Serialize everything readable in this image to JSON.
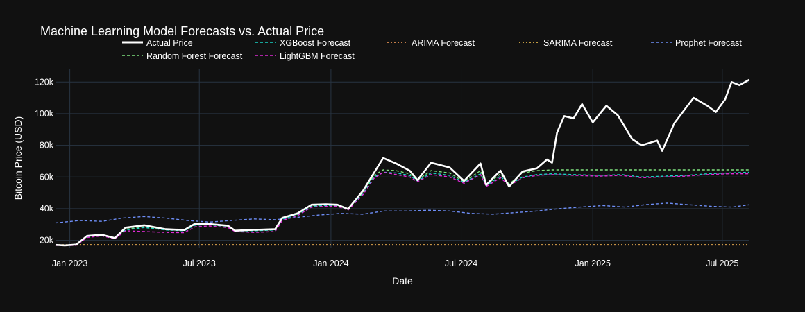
{
  "chart_data": {
    "type": "line",
    "title": "Machine Learning Model Forecasts vs. Actual Price",
    "xlabel": "Date",
    "ylabel": "Bitcoin Price (USD)",
    "x_range": [
      "2022-12-12",
      "2025-08-08"
    ],
    "ylim": [
      15000,
      128000
    ],
    "x_ticks": [
      {
        "date": "2023-01-01",
        "label": "Jan 2023"
      },
      {
        "date": "2023-07-01",
        "label": "Jul 2023"
      },
      {
        "date": "2024-01-01",
        "label": "Jan 2024"
      },
      {
        "date": "2024-07-01",
        "label": "Jul 2024"
      },
      {
        "date": "2025-01-01",
        "label": "Jan 2025"
      },
      {
        "date": "2025-07-01",
        "label": "Jul 2025"
      }
    ],
    "y_ticks": [
      {
        "value": 20000,
        "label": "20k"
      },
      {
        "value": 40000,
        "label": "40k"
      },
      {
        "value": 60000,
        "label": "60k"
      },
      {
        "value": 80000,
        "label": "80k"
      },
      {
        "value": 100000,
        "label": "100k"
      },
      {
        "value": 120000,
        "label": "120k"
      }
    ],
    "grid": true,
    "legend": {
      "placement": "top",
      "columns": 5
    },
    "series": [
      {
        "name": "Actual Price",
        "color": "#ffffff",
        "style": "solid",
        "x": [
          "2022-12-12",
          "2022-12-25",
          "2023-01-10",
          "2023-01-25",
          "2023-02-15",
          "2023-03-05",
          "2023-03-20",
          "2023-04-15",
          "2023-05-15",
          "2023-06-10",
          "2023-06-25",
          "2023-07-15",
          "2023-08-10",
          "2023-08-20",
          "2023-09-15",
          "2023-10-15",
          "2023-10-25",
          "2023-11-15",
          "2023-12-05",
          "2023-12-25",
          "2024-01-10",
          "2024-01-25",
          "2024-02-15",
          "2024-03-01",
          "2024-03-14",
          "2024-04-01",
          "2024-04-20",
          "2024-05-01",
          "2024-05-20",
          "2024-06-15",
          "2024-07-05",
          "2024-07-28",
          "2024-08-05",
          "2024-08-25",
          "2024-09-06",
          "2024-09-25",
          "2024-10-15",
          "2024-10-29",
          "2024-11-05",
          "2024-11-12",
          "2024-11-22",
          "2024-12-05",
          "2024-12-17",
          "2025-01-01",
          "2025-01-20",
          "2025-02-05",
          "2025-02-25",
          "2025-03-10",
          "2025-04-01",
          "2025-04-08",
          "2025-04-25",
          "2025-05-10",
          "2025-05-22",
          "2025-06-10",
          "2025-06-22",
          "2025-07-05",
          "2025-07-14",
          "2025-07-25",
          "2025-08-08"
        ],
        "y": [
          17100,
          16800,
          17300,
          22800,
          23500,
          21500,
          28000,
          29500,
          27000,
          26500,
          30500,
          30300,
          29200,
          26100,
          26600,
          27000,
          34200,
          37000,
          42500,
          42800,
          42500,
          39800,
          51500,
          62500,
          72000,
          68500,
          64000,
          58000,
          69000,
          66000,
          57500,
          68500,
          55000,
          64000,
          54000,
          63500,
          65500,
          71000,
          69000,
          88000,
          98500,
          97000,
          106000,
          94500,
          105000,
          99000,
          84000,
          80000,
          83000,
          76500,
          94000,
          103000,
          110000,
          105000,
          101000,
          109000,
          120000,
          118000,
          121500
        ]
      },
      {
        "name": "XGBoost Forecast",
        "color": "#19d3c5",
        "style": "dash",
        "x": [
          "2022-12-12",
          "2022-12-25",
          "2023-01-10",
          "2023-01-25",
          "2023-02-15",
          "2023-03-05",
          "2023-03-20",
          "2023-04-15",
          "2023-05-15",
          "2023-06-10",
          "2023-06-25",
          "2023-07-15",
          "2023-08-10",
          "2023-08-20",
          "2023-09-15",
          "2023-10-15",
          "2023-10-25",
          "2023-11-15",
          "2023-12-05",
          "2023-12-25",
          "2024-01-10",
          "2024-01-25",
          "2024-02-15",
          "2024-03-01",
          "2024-03-14",
          "2024-04-01",
          "2024-04-20",
          "2024-05-01",
          "2024-05-20",
          "2024-06-15",
          "2024-07-05",
          "2024-07-28",
          "2024-08-05",
          "2024-08-25",
          "2024-09-06",
          "2024-09-25",
          "2024-10-15",
          "2024-11-05",
          "2024-12-05",
          "2025-01-10",
          "2025-02-10",
          "2025-03-10",
          "2025-04-10",
          "2025-05-10",
          "2025-06-10",
          "2025-07-10",
          "2025-08-08"
        ],
        "y": [
          16900,
          16700,
          17000,
          22000,
          23200,
          21300,
          26500,
          28000,
          26500,
          26000,
          29500,
          29800,
          28800,
          25800,
          26000,
          26500,
          33500,
          36000,
          41500,
          42000,
          42000,
          39500,
          49500,
          60000,
          63000,
          62500,
          61000,
          57500,
          62500,
          61000,
          56500,
          62000,
          54500,
          60500,
          55000,
          60000,
          61500,
          62000,
          61500,
          61000,
          61500,
          60000,
          60500,
          61000,
          62000,
          62500,
          63000
        ]
      },
      {
        "name": "ARIMA Forecast",
        "color": "#ffa15a",
        "style": "dot",
        "x": [
          "2022-12-12",
          "2025-08-08"
        ],
        "y": [
          17000,
          17000
        ]
      },
      {
        "name": "SARIMA Forecast",
        "color": "#fecb52",
        "style": "dot",
        "x": [
          "2022-12-12",
          "2025-08-08"
        ],
        "y": [
          17200,
          17200
        ]
      },
      {
        "name": "Prophet Forecast",
        "color": "#6f8ff8",
        "style": "dash",
        "x": [
          "2022-12-12",
          "2023-01-15",
          "2023-02-15",
          "2023-03-15",
          "2023-04-15",
          "2023-05-15",
          "2023-06-15",
          "2023-07-15",
          "2023-08-15",
          "2023-09-15",
          "2023-10-15",
          "2023-11-15",
          "2023-12-15",
          "2024-01-15",
          "2024-02-15",
          "2024-03-15",
          "2024-04-15",
          "2024-05-15",
          "2024-06-15",
          "2024-07-15",
          "2024-08-15",
          "2024-09-15",
          "2024-10-15",
          "2024-11-15",
          "2024-12-15",
          "2025-01-15",
          "2025-02-15",
          "2025-03-15",
          "2025-04-15",
          "2025-05-15",
          "2025-06-15",
          "2025-07-15",
          "2025-08-08"
        ],
        "y": [
          31000,
          32500,
          32000,
          34000,
          35000,
          34000,
          32500,
          31500,
          32500,
          33500,
          33000,
          34500,
          36000,
          37000,
          36500,
          38500,
          38500,
          39000,
          38500,
          37000,
          36500,
          37500,
          38500,
          40000,
          41000,
          42000,
          41000,
          42500,
          43500,
          42500,
          41500,
          41000,
          42500
        ]
      },
      {
        "name": "Random Forest Forecast",
        "color": "#7fe37f",
        "style": "dash",
        "x": [
          "2022-12-12",
          "2022-12-25",
          "2023-01-10",
          "2023-01-25",
          "2023-02-15",
          "2023-03-05",
          "2023-03-20",
          "2023-04-15",
          "2023-05-15",
          "2023-06-10",
          "2023-06-25",
          "2023-07-15",
          "2023-08-10",
          "2023-08-20",
          "2023-09-15",
          "2023-10-15",
          "2023-10-25",
          "2023-11-15",
          "2023-12-05",
          "2023-12-25",
          "2024-01-10",
          "2024-01-25",
          "2024-02-15",
          "2024-03-01",
          "2024-03-14",
          "2024-04-01",
          "2024-04-20",
          "2024-05-01",
          "2024-05-20",
          "2024-06-15",
          "2024-07-05",
          "2024-07-28",
          "2024-08-05",
          "2024-08-25",
          "2024-09-06",
          "2024-09-25",
          "2024-10-15",
          "2024-11-05",
          "2025-08-08"
        ],
        "y": [
          17000,
          16750,
          17100,
          22300,
          23300,
          21400,
          27000,
          28500,
          26700,
          26200,
          29800,
          30000,
          29000,
          25900,
          26200,
          26700,
          33800,
          36500,
          42000,
          42400,
          42200,
          39600,
          50500,
          61000,
          64500,
          64000,
          62000,
          58000,
          64000,
          62500,
          57000,
          64000,
          55000,
          62000,
          55500,
          62500,
          64000,
          64500,
          64500
        ]
      },
      {
        "name": "LightGBM Forecast",
        "color": "#e32bd8",
        "style": "dash",
        "x": [
          "2022-12-12",
          "2022-12-25",
          "2023-01-10",
          "2023-01-25",
          "2023-02-15",
          "2023-03-05",
          "2023-03-20",
          "2023-04-15",
          "2023-05-15",
          "2023-06-10",
          "2023-06-25",
          "2023-07-15",
          "2023-08-10",
          "2023-08-20",
          "2023-09-15",
          "2023-10-15",
          "2023-10-25",
          "2023-11-15",
          "2023-12-05",
          "2023-12-25",
          "2024-01-10",
          "2024-01-25",
          "2024-02-15",
          "2024-03-01",
          "2024-03-14",
          "2024-04-01",
          "2024-04-20",
          "2024-05-01",
          "2024-05-20",
          "2024-06-15",
          "2024-07-05",
          "2024-07-28",
          "2024-08-05",
          "2024-08-25",
          "2024-09-06",
          "2024-09-25",
          "2024-10-15",
          "2024-11-05",
          "2024-12-05",
          "2025-01-10",
          "2025-02-10",
          "2025-03-10",
          "2025-04-10",
          "2025-05-10",
          "2025-06-10",
          "2025-07-10",
          "2025-08-08"
        ],
        "y": [
          16800,
          16600,
          16900,
          21800,
          22800,
          21000,
          26000,
          25500,
          25000,
          24800,
          28500,
          29000,
          28000,
          25500,
          25000,
          25500,
          32500,
          35500,
          41000,
          41500,
          41500,
          39000,
          49000,
          59000,
          63000,
          61500,
          60000,
          57000,
          61500,
          60000,
          56000,
          61500,
          54000,
          59500,
          54500,
          59500,
          61000,
          61500,
          61000,
          60500,
          61000,
          59500,
          60000,
          60500,
          61500,
          62000,
          62000
        ]
      }
    ]
  }
}
